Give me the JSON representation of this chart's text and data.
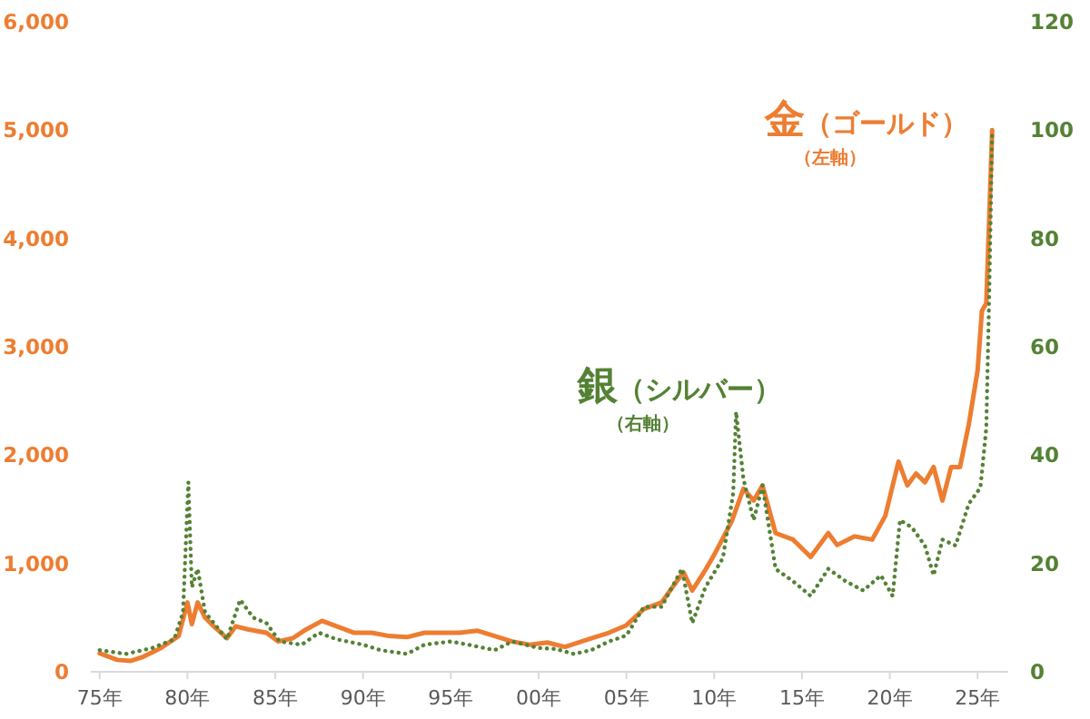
{
  "chart_data": {
    "type": "line",
    "xlim": [
      "1974-07",
      "2026-10"
    ],
    "xticks": [
      {
        "value": "1975",
        "label": "75年"
      },
      {
        "value": "1980",
        "label": "80年"
      },
      {
        "value": "1985",
        "label": "85年"
      },
      {
        "value": "1990",
        "label": "90年"
      },
      {
        "value": "1995",
        "label": "95年"
      },
      {
        "value": "2000",
        "label": "00年"
      },
      {
        "value": "2005",
        "label": "05年"
      },
      {
        "value": "2010",
        "label": "10年"
      },
      {
        "value": "2015",
        "label": "15年"
      },
      {
        "value": "2020",
        "label": "20年"
      },
      {
        "value": "2025",
        "label": "25年"
      }
    ],
    "ylim": [
      0,
      6000
    ],
    "yticks": [
      {
        "value": 0,
        "label": "0"
      },
      {
        "value": 1000,
        "label": "1,000"
      },
      {
        "value": 2000,
        "label": "2,000"
      },
      {
        "value": 3000,
        "label": "3,000"
      },
      {
        "value": 4000,
        "label": "4,000"
      },
      {
        "value": 5000,
        "label": "5,000"
      },
      {
        "value": 6000,
        "label": "6,000"
      }
    ],
    "y2lim": [
      0,
      120
    ],
    "y2ticks": [
      0,
      20,
      40,
      60,
      80,
      100,
      120
    ],
    "grid": false,
    "series": [
      {
        "name": "金（ゴールド）",
        "color": "#ed7d31",
        "line_style": "solid",
        "x": [
          "1975-01",
          "1976-01",
          "1976-10",
          "1977-07",
          "1978-07",
          "1979-07",
          "1980-01",
          "1980-04",
          "1980-08",
          "1981-01",
          "1981-07",
          "1982-04",
          "1982-10",
          "1983-07",
          "1984-07",
          "1985-03",
          "1986-01",
          "1986-10",
          "1987-09",
          "1988-07",
          "1989-07",
          "1990-07",
          "1991-07",
          "1992-07",
          "1993-07",
          "1994-07",
          "1995-07",
          "1996-07",
          "1997-07",
          "1998-07",
          "1999-07",
          "2000-07",
          "2001-07",
          "2003-01",
          "2004-01",
          "2005-01",
          "2006-01",
          "2007-01",
          "2008-04",
          "2008-10",
          "2009-07",
          "2010-01",
          "2011-01",
          "2011-09",
          "2012-04",
          "2012-10",
          "2013-07",
          "2014-07",
          "2015-07",
          "2016-07",
          "2017-01",
          "2018-01",
          "2019-01",
          "2019-10",
          "2020-07",
          "2021-01",
          "2021-07",
          "2022-01",
          "2022-07",
          "2023-01",
          "2023-07",
          "2024-01",
          "2024-07",
          "2025-01",
          "2025-04",
          "2025-07",
          "2025-09",
          "2025-11"
        ],
        "values": [
          170,
          110,
          100,
          140,
          220,
          330,
          640,
          440,
          640,
          500,
          420,
          310,
          420,
          390,
          360,
          280,
          310,
          390,
          470,
          420,
          360,
          360,
          330,
          320,
          360,
          360,
          360,
          380,
          330,
          280,
          250,
          270,
          230,
          310,
          360,
          430,
          580,
          640,
          920,
          750,
          940,
          1080,
          1390,
          1690,
          1580,
          1720,
          1280,
          1220,
          1060,
          1280,
          1170,
          1250,
          1220,
          1440,
          1940,
          1720,
          1830,
          1750,
          1890,
          1580,
          1890,
          1890,
          2280,
          2780,
          3330,
          3400,
          4200,
          5000
        ]
      },
      {
        "name": "銀（シルバー）",
        "color": "#548235",
        "axis": "y2",
        "line_style": "dotted",
        "x": [
          "1975-01",
          "1976-07",
          "1978-01",
          "1979-04",
          "1979-10",
          "1980-01-20",
          "1980-04",
          "1980-08",
          "1981-01",
          "1982-04",
          "1983-01",
          "1983-10",
          "1984-07",
          "1985-04",
          "1986-07",
          "1987-07",
          "1988-07",
          "1990-01",
          "1991-01",
          "1992-07",
          "1993-07",
          "1995-01",
          "1996-01",
          "1997-07",
          "1998-07",
          "2000-01",
          "2001-01",
          "2002-01",
          "2003-01",
          "2004-01",
          "2005-01",
          "2006-01",
          "2007-01",
          "2008-03",
          "2008-10",
          "2009-07",
          "2010-07",
          "2011-02",
          "2011-04",
          "2011-09",
          "2012-04",
          "2012-10",
          "2013-07",
          "2014-07",
          "2015-07",
          "2016-07",
          "2017-07",
          "2018-07",
          "2019-07",
          "2020-03",
          "2020-08",
          "2021-04",
          "2022-01",
          "2022-07",
          "2023-01",
          "2023-10",
          "2024-07",
          "2025-03",
          "2025-07",
          "2025-09",
          "2025-11"
        ],
        "values": [
          4,
          3.3,
          4.4,
          6,
          11,
          35,
          15.6,
          19,
          11,
          6,
          13.3,
          10,
          9,
          5.6,
          5,
          7.2,
          6,
          5,
          4,
          3.3,
          5,
          5.6,
          5,
          4,
          5.6,
          4.4,
          4.2,
          3.3,
          4,
          5.6,
          6.7,
          12,
          12,
          19,
          9,
          15.6,
          21,
          33,
          48,
          35.6,
          28,
          34.4,
          19,
          16.7,
          14,
          19,
          16.7,
          15,
          17.8,
          14,
          28,
          26.7,
          23.3,
          17.8,
          24.4,
          23.3,
          31,
          34,
          45,
          70,
          100
        ]
      }
    ],
    "annotations": [
      "（左軸）",
      "（右軸）"
    ]
  }
}
